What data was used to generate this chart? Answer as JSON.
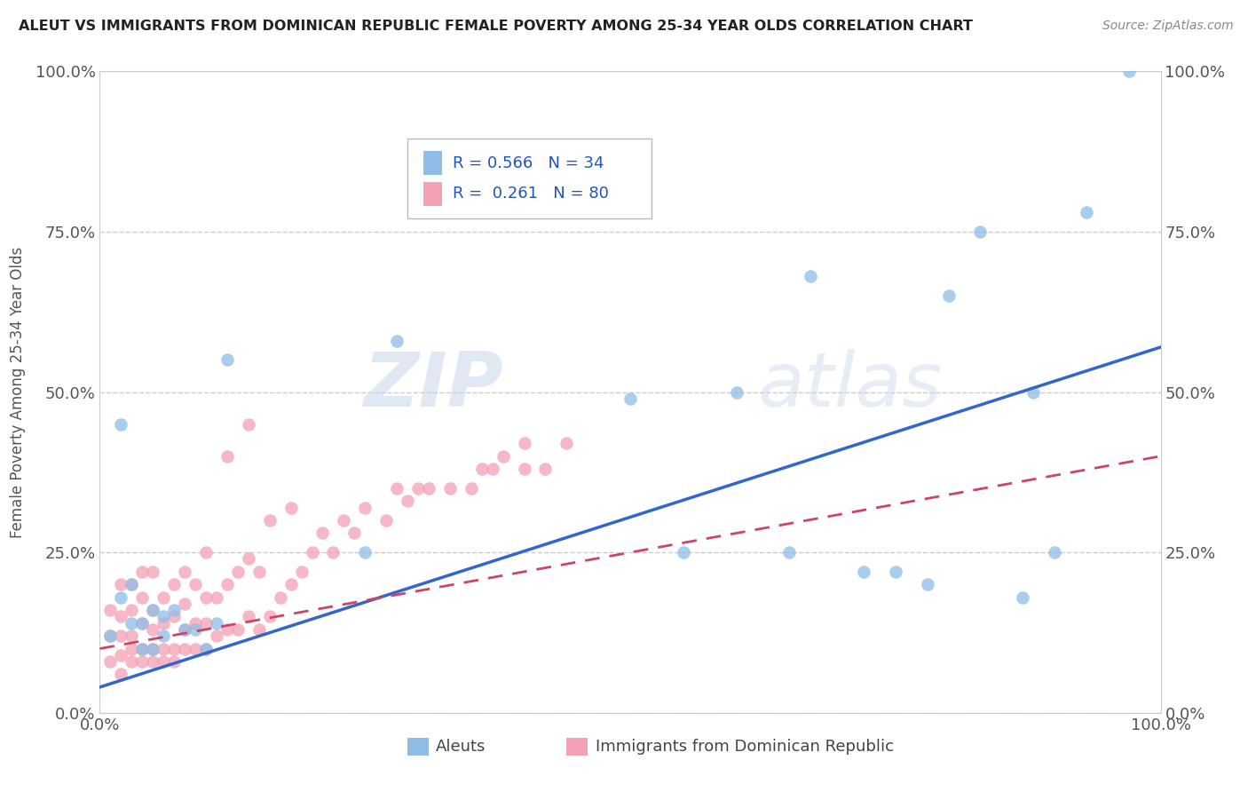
{
  "title": "ALEUT VS IMMIGRANTS FROM DOMINICAN REPUBLIC FEMALE POVERTY AMONG 25-34 YEAR OLDS CORRELATION CHART",
  "source": "Source: ZipAtlas.com",
  "ylabel": "Female Poverty Among 25-34 Year Olds",
  "xlim": [
    0,
    1
  ],
  "ylim": [
    0,
    1
  ],
  "xtick_labels": [
    "0.0%",
    "100.0%"
  ],
  "ytick_labels": [
    "0.0%",
    "25.0%",
    "50.0%",
    "75.0%",
    "100.0%"
  ],
  "ytick_values": [
    0,
    0.25,
    0.5,
    0.75,
    1.0
  ],
  "legend_r1": "R = 0.566",
  "legend_n1": "N = 34",
  "legend_r2": "R = 0.261",
  "legend_n2": "N = 80",
  "color_aleut": "#8fbde8",
  "color_dr": "#f4a0b5",
  "color_line_aleut": "#3366cc",
  "color_line_dr": "#cc4466",
  "aleut_line_y0": 0.04,
  "aleut_line_y1": 0.57,
  "dr_line_y0": 0.1,
  "dr_line_y1": 0.4,
  "aleut_x": [
    0.01,
    0.02,
    0.02,
    0.03,
    0.03,
    0.04,
    0.04,
    0.05,
    0.05,
    0.06,
    0.06,
    0.07,
    0.08,
    0.09,
    0.1,
    0.11,
    0.12,
    0.25,
    0.28,
    0.5,
    0.55,
    0.6,
    0.65,
    0.67,
    0.72,
    0.75,
    0.78,
    0.8,
    0.83,
    0.87,
    0.88,
    0.9,
    0.93,
    0.97
  ],
  "aleut_y": [
    0.12,
    0.45,
    0.18,
    0.14,
    0.2,
    0.14,
    0.1,
    0.16,
    0.1,
    0.12,
    0.15,
    0.16,
    0.13,
    0.13,
    0.1,
    0.14,
    0.55,
    0.25,
    0.58,
    0.49,
    0.25,
    0.5,
    0.25,
    0.68,
    0.22,
    0.22,
    0.2,
    0.65,
    0.75,
    0.18,
    0.5,
    0.25,
    0.78,
    1.0
  ],
  "dr_x": [
    0.01,
    0.01,
    0.01,
    0.02,
    0.02,
    0.02,
    0.02,
    0.02,
    0.03,
    0.03,
    0.03,
    0.03,
    0.03,
    0.04,
    0.04,
    0.04,
    0.04,
    0.04,
    0.05,
    0.05,
    0.05,
    0.05,
    0.05,
    0.06,
    0.06,
    0.06,
    0.06,
    0.07,
    0.07,
    0.07,
    0.07,
    0.08,
    0.08,
    0.08,
    0.08,
    0.09,
    0.09,
    0.09,
    0.1,
    0.1,
    0.1,
    0.1,
    0.11,
    0.11,
    0.12,
    0.12,
    0.13,
    0.13,
    0.14,
    0.14,
    0.15,
    0.15,
    0.16,
    0.16,
    0.17,
    0.18,
    0.18,
    0.19,
    0.2,
    0.21,
    0.22,
    0.23,
    0.24,
    0.25,
    0.27,
    0.28,
    0.29,
    0.3,
    0.31,
    0.33,
    0.35,
    0.36,
    0.37,
    0.38,
    0.4,
    0.4,
    0.42,
    0.44,
    0.12,
    0.14
  ],
  "dr_y": [
    0.08,
    0.12,
    0.16,
    0.06,
    0.09,
    0.12,
    0.15,
    0.2,
    0.08,
    0.1,
    0.12,
    0.16,
    0.2,
    0.08,
    0.1,
    0.14,
    0.18,
    0.22,
    0.08,
    0.1,
    0.13,
    0.16,
    0.22,
    0.08,
    0.1,
    0.14,
    0.18,
    0.08,
    0.1,
    0.15,
    0.2,
    0.1,
    0.13,
    0.17,
    0.22,
    0.1,
    0.14,
    0.2,
    0.1,
    0.14,
    0.18,
    0.25,
    0.12,
    0.18,
    0.13,
    0.2,
    0.13,
    0.22,
    0.15,
    0.24,
    0.13,
    0.22,
    0.15,
    0.3,
    0.18,
    0.2,
    0.32,
    0.22,
    0.25,
    0.28,
    0.25,
    0.3,
    0.28,
    0.32,
    0.3,
    0.35,
    0.33,
    0.35,
    0.35,
    0.35,
    0.35,
    0.38,
    0.38,
    0.4,
    0.38,
    0.42,
    0.38,
    0.42,
    0.4,
    0.45
  ]
}
